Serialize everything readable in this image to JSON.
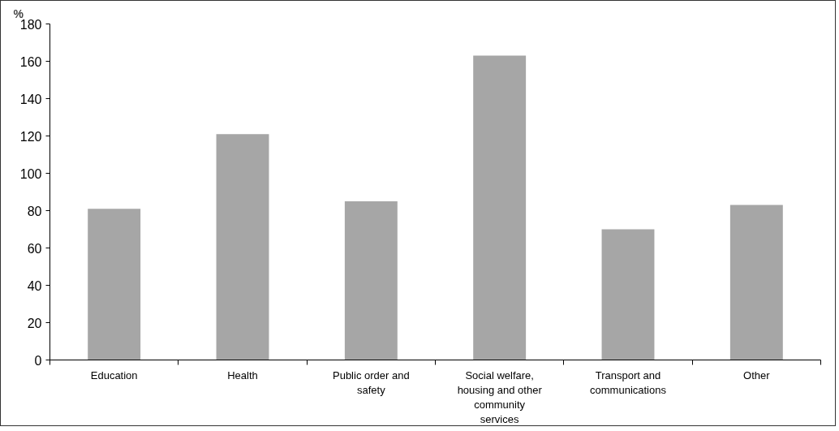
{
  "chart_data": {
    "type": "bar",
    "ylabel": "%",
    "categories": [
      "Education",
      "Health",
      "Public order and safety",
      "Social welfare, housing and other community services",
      "Transport and communications",
      "Other"
    ],
    "values": [
      81,
      121,
      85,
      163,
      70,
      83
    ],
    "color": "#a6a6a6",
    "ylim": [
      0,
      180
    ],
    "yticks": [
      0,
      20,
      40,
      60,
      80,
      100,
      120,
      140,
      160,
      180
    ],
    "grid": false
  }
}
